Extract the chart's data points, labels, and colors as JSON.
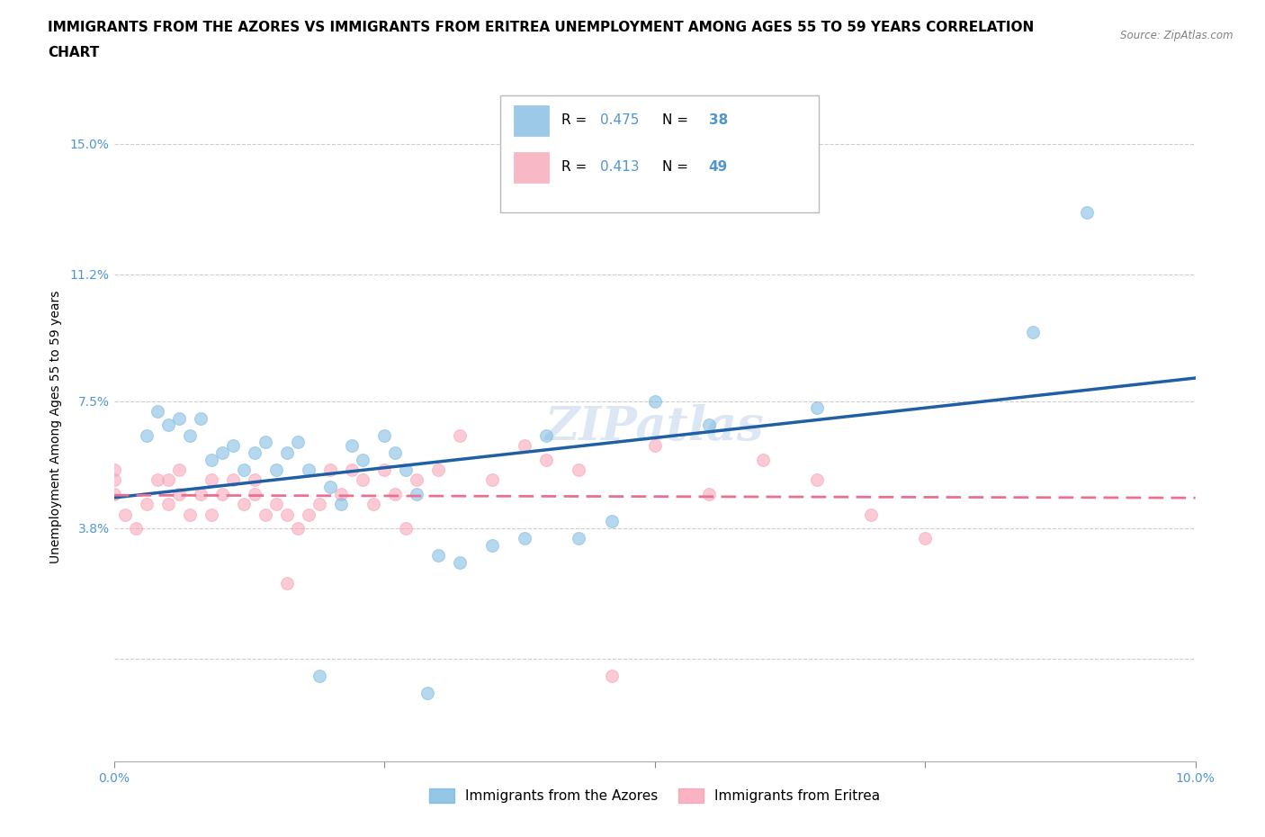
{
  "title_line1": "IMMIGRANTS FROM THE AZORES VS IMMIGRANTS FROM ERITREA UNEMPLOYMENT AMONG AGES 55 TO 59 YEARS CORRELATION",
  "title_line2": "CHART",
  "source": "Source: ZipAtlas.com",
  "ylabel": "Unemployment Among Ages 55 to 59 years",
  "xlim": [
    0.0,
    0.1
  ],
  "ylim": [
    -0.03,
    0.165
  ],
  "xticks": [
    0.0,
    0.025,
    0.05,
    0.075,
    0.1
  ],
  "xticklabels": [
    "0.0%",
    "",
    "",
    "",
    "10.0%"
  ],
  "ytick_vals": [
    0.0,
    0.038,
    0.075,
    0.112,
    0.15
  ],
  "yticklabels": [
    "",
    "3.8%",
    "7.5%",
    "11.2%",
    "15.0%"
  ],
  "azores_color": "#7ab8e0",
  "eritrea_color": "#f8a0b4",
  "azores_line_color": "#1f5fa6",
  "eritrea_line_color": "#e87090",
  "background_color": "#ffffff",
  "watermark": "ZIPatlas",
  "R_azores": 0.475,
  "N_azores": 38,
  "R_eritrea": 0.413,
  "N_eritrea": 49,
  "azores_scatter_x": [
    0.003,
    0.004,
    0.005,
    0.006,
    0.007,
    0.008,
    0.009,
    0.01,
    0.011,
    0.012,
    0.013,
    0.014,
    0.015,
    0.016,
    0.017,
    0.018,
    0.019,
    0.02,
    0.021,
    0.022,
    0.023,
    0.025,
    0.026,
    0.027,
    0.028,
    0.029,
    0.03,
    0.032,
    0.035,
    0.038,
    0.04,
    0.043,
    0.046,
    0.05,
    0.055,
    0.065,
    0.085,
    0.09
  ],
  "azores_scatter_y": [
    0.065,
    0.072,
    0.068,
    0.07,
    0.065,
    0.07,
    0.058,
    0.06,
    0.062,
    0.055,
    0.06,
    0.063,
    0.055,
    0.06,
    0.063,
    0.055,
    -0.005,
    0.05,
    0.045,
    0.062,
    0.058,
    0.065,
    0.06,
    0.055,
    0.048,
    -0.01,
    0.03,
    0.028,
    0.033,
    0.035,
    0.065,
    0.035,
    0.04,
    0.075,
    0.068,
    0.073,
    0.095,
    0.13
  ],
  "eritrea_scatter_x": [
    0.0,
    0.0,
    0.0,
    0.001,
    0.002,
    0.003,
    0.004,
    0.005,
    0.005,
    0.006,
    0.006,
    0.007,
    0.008,
    0.009,
    0.009,
    0.01,
    0.011,
    0.012,
    0.013,
    0.013,
    0.014,
    0.015,
    0.016,
    0.016,
    0.017,
    0.018,
    0.019,
    0.02,
    0.021,
    0.022,
    0.023,
    0.024,
    0.025,
    0.026,
    0.027,
    0.028,
    0.03,
    0.032,
    0.035,
    0.038,
    0.04,
    0.043,
    0.046,
    0.05,
    0.055,
    0.06,
    0.065,
    0.07,
    0.075
  ],
  "eritrea_scatter_y": [
    0.048,
    0.052,
    0.055,
    0.042,
    0.038,
    0.045,
    0.052,
    0.045,
    0.052,
    0.048,
    0.055,
    0.042,
    0.048,
    0.042,
    0.052,
    0.048,
    0.052,
    0.045,
    0.048,
    0.052,
    0.042,
    0.045,
    0.022,
    0.042,
    0.038,
    0.042,
    0.045,
    0.055,
    0.048,
    0.055,
    0.052,
    0.045,
    0.055,
    0.048,
    0.038,
    0.052,
    0.055,
    0.065,
    0.052,
    0.062,
    0.058,
    0.055,
    -0.005,
    0.062,
    0.048,
    0.058,
    0.052,
    0.042,
    0.035
  ],
  "title_fontsize": 11,
  "axis_label_fontsize": 10,
  "tick_fontsize": 10,
  "legend_fontsize": 11,
  "watermark_fontsize": 38,
  "marker_size": 100,
  "marker_alpha": 0.55,
  "grid_color": "#c8c8c8",
  "tick_color": "#4f96d0",
  "axis_color": "#4f96d0"
}
